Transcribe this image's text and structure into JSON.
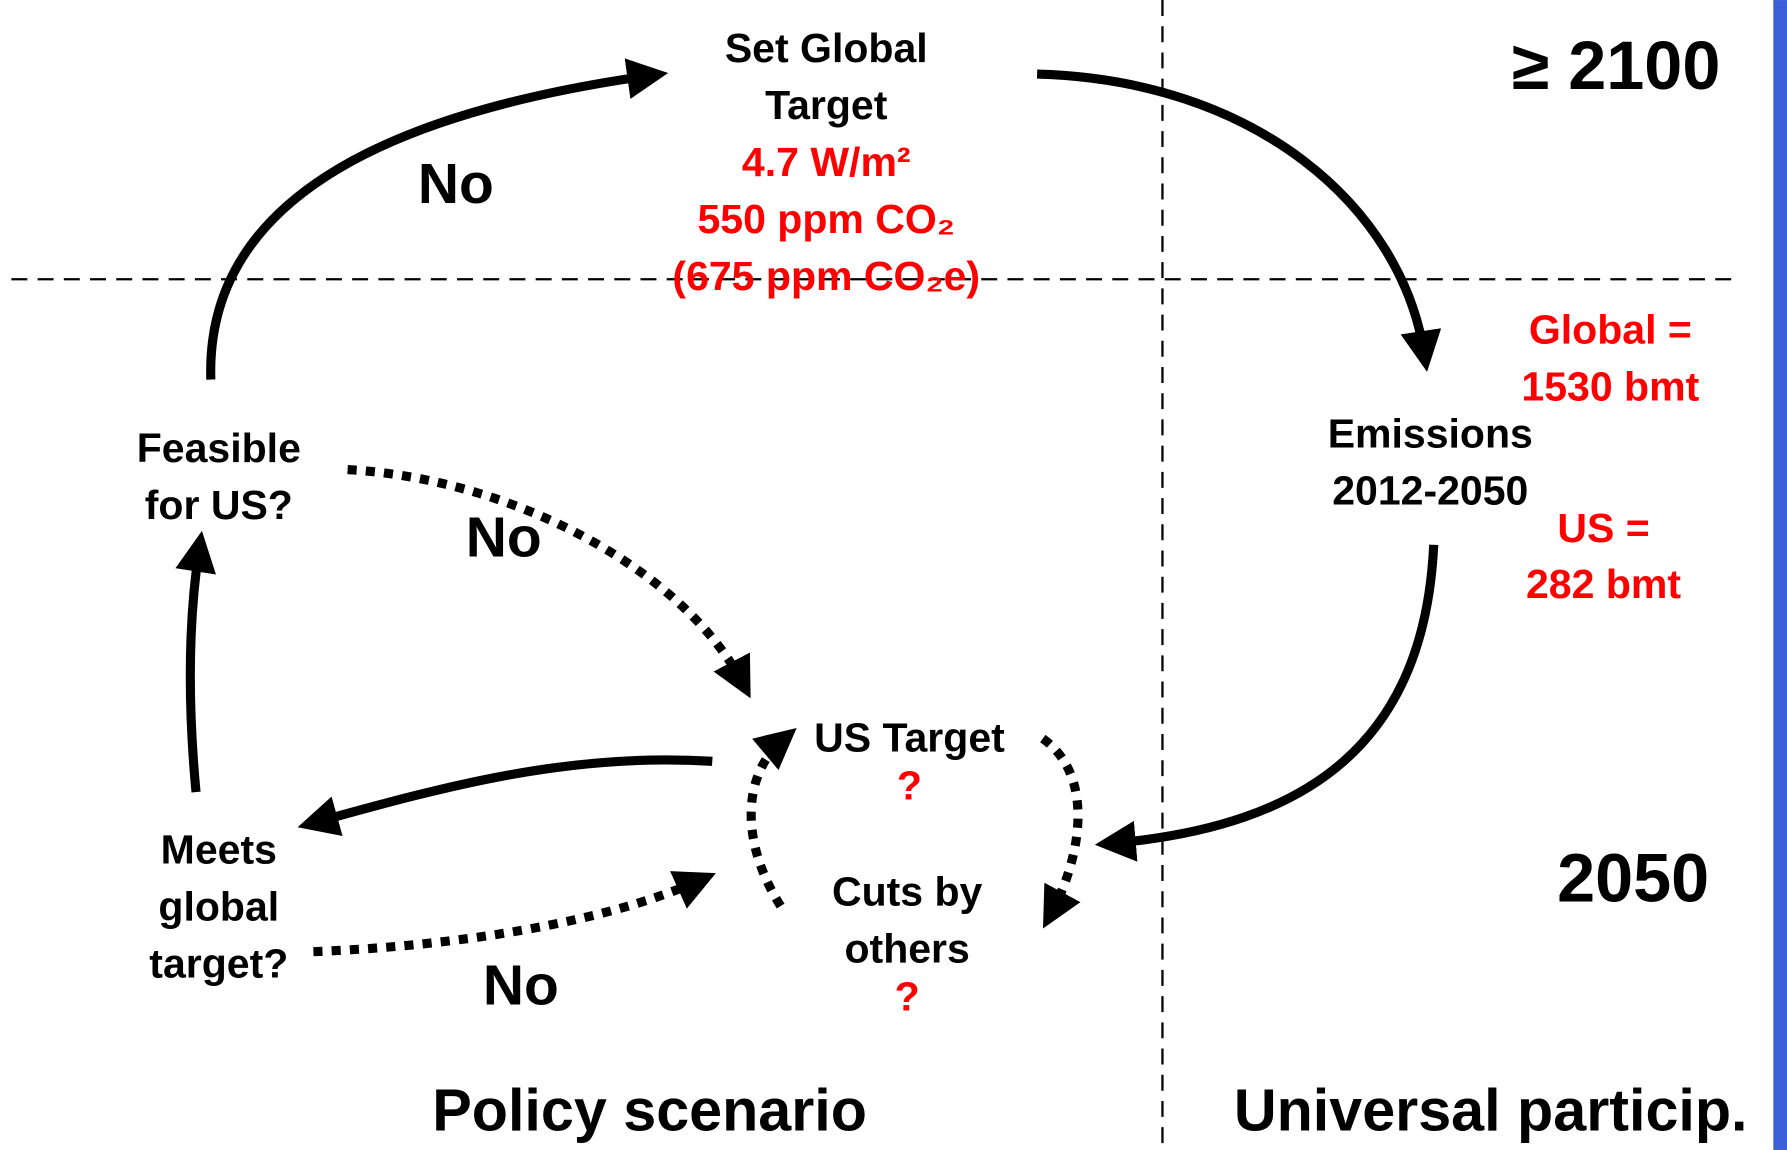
{
  "nodes": [
    {
      "id": "global-target",
      "lines": [
        "Set Global",
        "Target"
      ],
      "detail": [
        "4.7 W/m²",
        "550 ppm CO₂",
        "(675 ppm CO₂e)"
      ]
    },
    {
      "id": "emissions",
      "lines": [
        "Emissions",
        "2012-2050"
      ],
      "detail": []
    },
    {
      "id": "us-target",
      "lines": [
        "US Target"
      ],
      "detail": [
        "?"
      ]
    },
    {
      "id": "cuts",
      "lines": [
        "Cuts by",
        "others"
      ],
      "detail": [
        "?"
      ]
    },
    {
      "id": "meets",
      "lines": [
        "Meets",
        "global",
        "target?"
      ],
      "detail": []
    },
    {
      "id": "feasible",
      "lines": [
        "Feasible",
        "for US?"
      ],
      "detail": []
    }
  ],
  "edge_labels": [
    "No",
    "No",
    "No"
  ],
  "budgets": [
    "Global =",
    "1530 bmt",
    "US =",
    "282 bmt"
  ],
  "horizons": [
    "≥ 2100",
    "2050"
  ],
  "sections": [
    "Policy scenario",
    "Universal particip."
  ]
}
